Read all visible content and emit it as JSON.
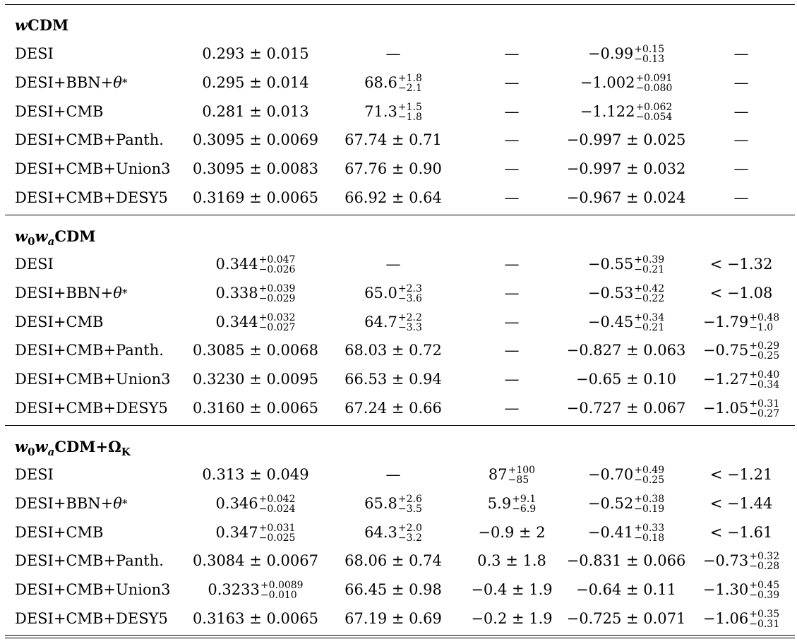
{
  "sections": [
    {
      "title": "wCDM",
      "rows": [
        {
          "dataset": "DESI",
          "omega_m": {
            "text": "0.293 ± 0.015"
          },
          "h0": {
            "text": "—"
          },
          "omega_k": {
            "text": "—"
          },
          "w0": {
            "v": "−0.99",
            "up": "+0.15",
            "dn": "−0.13"
          },
          "wa": {
            "text": "—"
          }
        },
        {
          "dataset": "DESI+BBN+θ*",
          "omega_m": {
            "text": "0.295 ± 0.014"
          },
          "h0": {
            "v": "68.6",
            "up": "+1.8",
            "dn": "−2.1"
          },
          "omega_k": {
            "text": "—"
          },
          "w0": {
            "v": "−1.002",
            "up": "+0.091",
            "dn": "−0.080"
          },
          "wa": {
            "text": "—"
          }
        },
        {
          "dataset": "DESI+CMB",
          "omega_m": {
            "text": "0.281 ± 0.013"
          },
          "h0": {
            "v": "71.3",
            "up": "+1.5",
            "dn": "−1.8"
          },
          "omega_k": {
            "text": "—"
          },
          "w0": {
            "v": "−1.122",
            "up": "+0.062",
            "dn": "−0.054"
          },
          "wa": {
            "text": "—"
          }
        },
        {
          "dataset": "DESI+CMB+Panth.",
          "omega_m": {
            "text": "0.3095 ± 0.0069"
          },
          "h0": {
            "text": "67.74 ± 0.71"
          },
          "omega_k": {
            "text": "—"
          },
          "w0": {
            "text": "−0.997 ± 0.025"
          },
          "wa": {
            "text": "—"
          }
        },
        {
          "dataset": "DESI+CMB+Union3",
          "omega_m": {
            "text": "0.3095 ± 0.0083"
          },
          "h0": {
            "text": "67.76 ± 0.90"
          },
          "omega_k": {
            "text": "—"
          },
          "w0": {
            "text": "−0.997 ± 0.032"
          },
          "wa": {
            "text": "—"
          }
        },
        {
          "dataset": "DESI+CMB+DESY5",
          "omega_m": {
            "text": "0.3169 ± 0.0065"
          },
          "h0": {
            "text": "66.92 ± 0.64"
          },
          "omega_k": {
            "text": "—"
          },
          "w0": {
            "text": "−0.967 ± 0.024"
          },
          "wa": {
            "text": "—"
          }
        }
      ]
    },
    {
      "title": "w0waCDM",
      "rows": [
        {
          "dataset": "DESI",
          "omega_m": {
            "v": "0.344",
            "up": "+0.047",
            "dn": "−0.026"
          },
          "h0": {
            "text": "—"
          },
          "omega_k": {
            "text": "—"
          },
          "w0": {
            "v": "−0.55",
            "up": "+0.39",
            "dn": "−0.21"
          },
          "wa": {
            "text": "< −1.32"
          }
        },
        {
          "dataset": "DESI+BBN+θ*",
          "omega_m": {
            "v": "0.338",
            "up": "+0.039",
            "dn": "−0.029"
          },
          "h0": {
            "v": "65.0",
            "up": "+2.3",
            "dn": "−3.6"
          },
          "omega_k": {
            "text": "—"
          },
          "w0": {
            "v": "−0.53",
            "up": "+0.42",
            "dn": "−0.22"
          },
          "wa": {
            "text": "< −1.08"
          }
        },
        {
          "dataset": "DESI+CMB",
          "omega_m": {
            "v": "0.344",
            "up": "+0.032",
            "dn": "−0.027"
          },
          "h0": {
            "v": "64.7",
            "up": "+2.2",
            "dn": "−3.3"
          },
          "omega_k": {
            "text": "—"
          },
          "w0": {
            "v": "−0.45",
            "up": "+0.34",
            "dn": "−0.21"
          },
          "wa": {
            "v": "−1.79",
            "up": "+0.48",
            "dn": "−1.0"
          }
        },
        {
          "dataset": "DESI+CMB+Panth.",
          "omega_m": {
            "text": "0.3085 ± 0.0068"
          },
          "h0": {
            "text": "68.03 ± 0.72"
          },
          "omega_k": {
            "text": "—"
          },
          "w0": {
            "text": "−0.827 ± 0.063"
          },
          "wa": {
            "v": "−0.75",
            "up": "+0.29",
            "dn": "−0.25"
          }
        },
        {
          "dataset": "DESI+CMB+Union3",
          "omega_m": {
            "text": "0.3230 ± 0.0095"
          },
          "h0": {
            "text": "66.53 ± 0.94"
          },
          "omega_k": {
            "text": "—"
          },
          "w0": {
            "text": "−0.65 ± 0.10"
          },
          "wa": {
            "v": "−1.27",
            "up": "+0.40",
            "dn": "−0.34"
          }
        },
        {
          "dataset": "DESI+CMB+DESY5",
          "omega_m": {
            "text": "0.3160 ± 0.0065"
          },
          "h0": {
            "text": "67.24 ± 0.66"
          },
          "omega_k": {
            "text": "—"
          },
          "w0": {
            "text": "−0.727 ± 0.067"
          },
          "wa": {
            "v": "−1.05",
            "up": "+0.31",
            "dn": "−0.27"
          }
        }
      ]
    },
    {
      "title": "w0waCDM+ΩK",
      "rows": [
        {
          "dataset": "DESI",
          "omega_m": {
            "text": "0.313 ± 0.049"
          },
          "h0": {
            "text": "—"
          },
          "omega_k": {
            "v": "87",
            "up": "+100",
            "dn": "−85"
          },
          "w0": {
            "v": "−0.70",
            "up": "+0.49",
            "dn": "−0.25"
          },
          "wa": {
            "text": "< −1.21"
          }
        },
        {
          "dataset": "DESI+BBN+θ*",
          "omega_m": {
            "v": "0.346",
            "up": "+0.042",
            "dn": "−0.024"
          },
          "h0": {
            "v": "65.8",
            "up": "+2.6",
            "dn": "−3.5"
          },
          "omega_k": {
            "v": "5.9",
            "up": "+9.1",
            "dn": "−6.9"
          },
          "w0": {
            "v": "−0.52",
            "up": "+0.38",
            "dn": "−0.19"
          },
          "wa": {
            "text": "< −1.44"
          }
        },
        {
          "dataset": "DESI+CMB",
          "omega_m": {
            "v": "0.347",
            "up": "+0.031",
            "dn": "−0.025"
          },
          "h0": {
            "v": "64.3",
            "up": "+2.0",
            "dn": "−3.2"
          },
          "omega_k": {
            "text": "−0.9 ± 2"
          },
          "w0": {
            "v": "−0.41",
            "up": "+0.33",
            "dn": "−0.18"
          },
          "wa": {
            "text": "< −1.61"
          }
        },
        {
          "dataset": "DESI+CMB+Panth.",
          "omega_m": {
            "text": "0.3084 ± 0.0067"
          },
          "h0": {
            "text": "68.06 ± 0.74"
          },
          "omega_k": {
            "text": "0.3 ± 1.8"
          },
          "w0": {
            "text": "−0.831 ± 0.066"
          },
          "wa": {
            "v": "−0.73",
            "up": "+0.32",
            "dn": "−0.28"
          }
        },
        {
          "dataset": "DESI+CMB+Union3",
          "omega_m": {
            "v": "0.3233",
            "up": "+0.0089",
            "dn": "−0.010"
          },
          "h0": {
            "text": "66.45 ± 0.98"
          },
          "omega_k": {
            "text": "−0.4 ± 1.9"
          },
          "w0": {
            "text": "−0.64 ± 0.11"
          },
          "wa": {
            "v": "−1.30",
            "up": "+0.45",
            "dn": "−0.39"
          }
        },
        {
          "dataset": "DESI+CMB+DESY5",
          "omega_m": {
            "text": "0.3163 ± 0.0065"
          },
          "h0": {
            "text": "67.19 ± 0.69"
          },
          "omega_k": {
            "text": "−0.2 ± 1.9"
          },
          "w0": {
            "text": "−0.725 ± 0.071"
          },
          "wa": {
            "v": "−1.06",
            "up": "+0.35",
            "dn": "−0.31"
          }
        }
      ]
    }
  ]
}
